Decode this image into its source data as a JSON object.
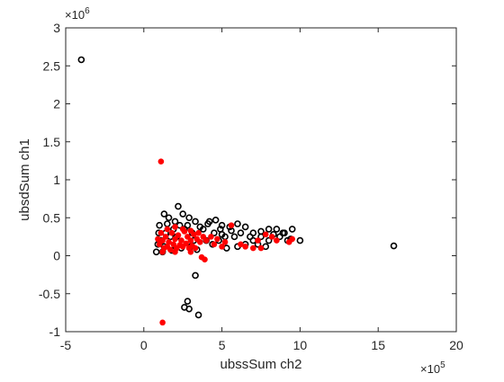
{
  "chart_data": {
    "type": "scatter",
    "title": "",
    "xlabel": "ubssSum ch2",
    "ylabel": "ubsdSum ch1",
    "xlim": [
      -5,
      20
    ],
    "ylim": [
      -1,
      3
    ],
    "x_exponent_label": "×10",
    "x_exponent_power": "5",
    "y_exponent_label": "×10",
    "y_exponent_power": "6",
    "x_ticks": [
      -5,
      0,
      5,
      10,
      15,
      20
    ],
    "x_tick_labels": [
      "-5",
      "0",
      "5",
      "10",
      "15",
      "20"
    ],
    "y_ticks": [
      -1,
      -0.5,
      0,
      0.5,
      1,
      1.5,
      2,
      2.5,
      3
    ],
    "y_tick_labels": [
      "-1",
      "-0.5",
      "0",
      "0.5",
      "1",
      "1.5",
      "2",
      "2.5",
      "3"
    ],
    "grid": false,
    "legend": "none",
    "series": [
      {
        "marker": "open-circle",
        "color": "#000000",
        "points": [
          [
            -4.0,
            2.58
          ],
          [
            16.0,
            0.13
          ],
          [
            3.3,
            -0.26
          ],
          [
            2.8,
            -0.6
          ],
          [
            2.9,
            -0.7
          ],
          [
            3.5,
            -0.78
          ],
          [
            2.6,
            -0.68
          ],
          [
            1.0,
            0.4
          ],
          [
            1.3,
            0.55
          ],
          [
            1.6,
            0.5
          ],
          [
            2.0,
            0.45
          ],
          [
            2.2,
            0.65
          ],
          [
            2.5,
            0.55
          ],
          [
            2.9,
            0.5
          ],
          [
            3.3,
            0.45
          ],
          [
            3.6,
            0.38
          ],
          [
            4.2,
            0.45
          ],
          [
            4.6,
            0.47
          ],
          [
            5.0,
            0.4
          ],
          [
            5.5,
            0.38
          ],
          [
            6.0,
            0.42
          ],
          [
            6.5,
            0.38
          ],
          [
            7.0,
            0.3
          ],
          [
            7.5,
            0.32
          ],
          [
            8.0,
            0.35
          ],
          [
            8.5,
            0.35
          ],
          [
            9.0,
            0.3
          ],
          [
            9.5,
            0.35
          ],
          [
            10.0,
            0.2
          ],
          [
            5.3,
            0.1
          ],
          [
            6.0,
            0.12
          ],
          [
            6.5,
            0.15
          ],
          [
            7.0,
            0.2
          ],
          [
            7.5,
            0.25
          ],
          [
            8.0,
            0.2
          ],
          [
            8.7,
            0.25
          ],
          [
            9.2,
            0.2
          ],
          [
            4.5,
            0.3
          ],
          [
            5.0,
            0.28
          ],
          [
            5.8,
            0.25
          ],
          [
            4.0,
            0.2
          ],
          [
            3.8,
            0.35
          ],
          [
            3.1,
            0.3
          ],
          [
            2.6,
            0.35
          ],
          [
            2.3,
            0.4
          ],
          [
            1.9,
            0.35
          ],
          [
            1.7,
            0.25
          ],
          [
            1.4,
            0.3
          ],
          [
            1.1,
            0.2
          ],
          [
            0.9,
            0.15
          ],
          [
            0.8,
            0.05
          ],
          [
            1.2,
            0.05
          ],
          [
            1.8,
            0.07
          ],
          [
            2.4,
            0.1
          ],
          [
            3.0,
            0.12
          ],
          [
            3.4,
            0.08
          ],
          [
            4.4,
            0.15
          ],
          [
            4.8,
            0.2
          ],
          [
            5.2,
            0.25
          ],
          [
            6.2,
            0.3
          ],
          [
            6.8,
            0.25
          ],
          [
            7.3,
            0.15
          ],
          [
            7.8,
            0.12
          ],
          [
            8.3,
            0.28
          ],
          [
            8.9,
            0.3
          ],
          [
            9.4,
            0.22
          ],
          [
            4.1,
            0.42
          ],
          [
            4.9,
            0.35
          ],
          [
            5.6,
            0.33
          ],
          [
            1.5,
            0.42
          ],
          [
            2.8,
            0.4
          ],
          [
            3.2,
            0.2
          ],
          [
            2.1,
            0.25
          ],
          [
            1.3,
            0.12
          ],
          [
            0.95,
            0.3
          ]
        ]
      },
      {
        "marker": "filled-circle",
        "color": "#ff0000",
        "points": [
          [
            1.1,
            1.24
          ],
          [
            1.2,
            -0.88
          ],
          [
            3.9,
            -0.05
          ],
          [
            3.7,
            -0.02
          ],
          [
            1.0,
            0.15
          ],
          [
            1.2,
            0.2
          ],
          [
            1.4,
            0.25
          ],
          [
            1.6,
            0.18
          ],
          [
            1.8,
            0.3
          ],
          [
            2.0,
            0.22
          ],
          [
            2.2,
            0.27
          ],
          [
            2.4,
            0.2
          ],
          [
            2.6,
            0.32
          ],
          [
            2.8,
            0.25
          ],
          [
            3.0,
            0.2
          ],
          [
            3.2,
            0.28
          ],
          [
            3.4,
            0.22
          ],
          [
            3.6,
            0.18
          ],
          [
            3.8,
            0.25
          ],
          [
            4.0,
            0.2
          ],
          [
            1.3,
            0.1
          ],
          [
            1.5,
            0.12
          ],
          [
            1.7,
            0.08
          ],
          [
            1.9,
            0.15
          ],
          [
            2.1,
            0.1
          ],
          [
            2.3,
            0.14
          ],
          [
            2.5,
            0.12
          ],
          [
            2.7,
            0.16
          ],
          [
            2.9,
            0.1
          ],
          [
            3.1,
            0.13
          ],
          [
            3.3,
            0.1
          ],
          [
            1.1,
            0.3
          ],
          [
            1.5,
            0.35
          ],
          [
            2.0,
            0.38
          ],
          [
            2.5,
            0.35
          ],
          [
            3.0,
            0.33
          ],
          [
            3.5,
            0.3
          ],
          [
            1.2,
            0.05
          ],
          [
            0.9,
            0.22
          ],
          [
            4.3,
            0.25
          ],
          [
            4.7,
            0.22
          ],
          [
            5.2,
            0.18
          ],
          [
            5.6,
            0.4
          ],
          [
            6.2,
            0.15
          ],
          [
            6.5,
            0.12
          ],
          [
            7.0,
            0.1
          ],
          [
            7.3,
            0.2
          ],
          [
            7.5,
            0.1
          ],
          [
            7.8,
            0.28
          ],
          [
            8.2,
            0.25
          ],
          [
            8.5,
            0.2
          ],
          [
            9.3,
            0.18
          ],
          [
            9.5,
            0.22
          ],
          [
            4.5,
            0.15
          ],
          [
            5.0,
            0.12
          ],
          [
            3.0,
            0.05
          ],
          [
            2.0,
            0.05
          ]
        ]
      }
    ]
  }
}
